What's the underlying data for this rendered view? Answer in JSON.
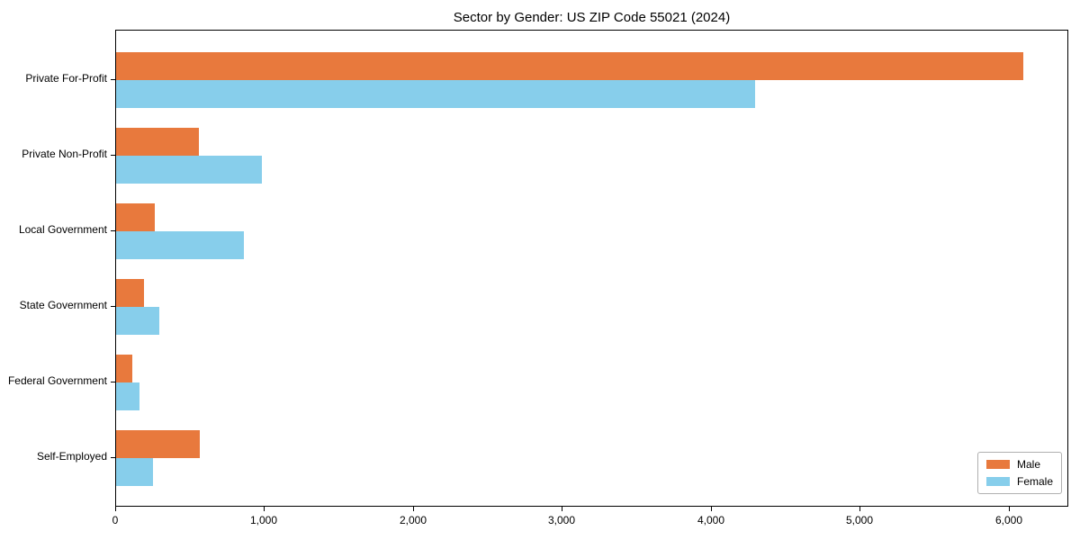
{
  "chart_data": {
    "type": "bar",
    "orientation": "horizontal",
    "title": "Sector by Gender: US ZIP Code 55021 (2024)",
    "categories": [
      "Private For-Profit",
      "Private Non-Profit",
      "Local Government",
      "State Government",
      "Federal Government",
      "Self-Employed"
    ],
    "series": [
      {
        "name": "Male",
        "color": "#E8793D",
        "values": [
          6090,
          555,
          260,
          190,
          110,
          560
        ]
      },
      {
        "name": "Female",
        "color": "#87CEEB",
        "values": [
          4290,
          980,
          860,
          290,
          160,
          250
        ]
      }
    ],
    "xlabel": "",
    "ylabel": "",
    "xlim": [
      0,
      6400
    ],
    "xticks": {
      "values": [
        0,
        1000,
        2000,
        3000,
        4000,
        5000,
        6000
      ],
      "labels": [
        "0",
        "1,000",
        "2,000",
        "3,000",
        "4,000",
        "5,000",
        "6,000"
      ]
    },
    "grid": false,
    "legend": {
      "position": "lower-right"
    }
  },
  "colors": {
    "male": "#E8793D",
    "female": "#87CEEB",
    "spine": "#000000",
    "text": "#000000",
    "legend_border": "#b0b0b0",
    "background": "#ffffff"
  }
}
